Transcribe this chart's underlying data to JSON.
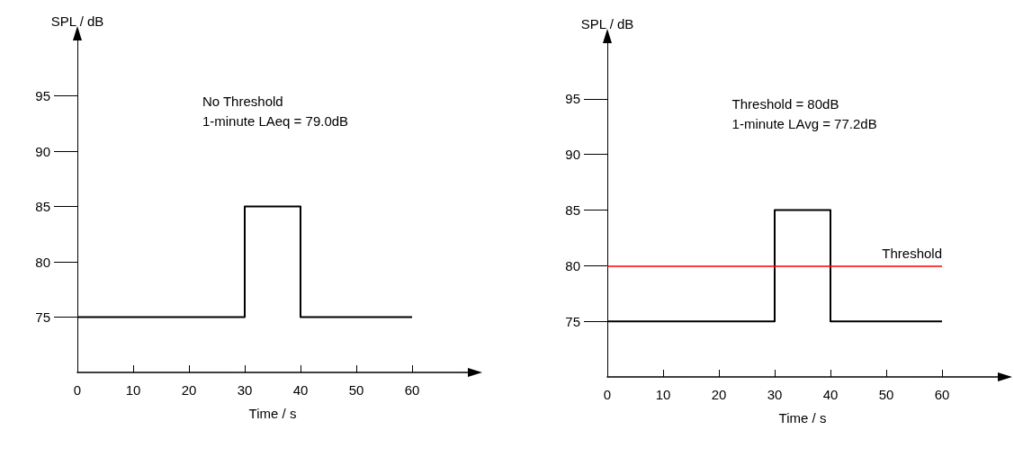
{
  "chart_data": [
    {
      "type": "step",
      "xlabel": "Time / s",
      "ylabel": "SPL / dB",
      "annotations": [
        "No Threshold",
        "1-minute LAeq = 79.0dB"
      ],
      "x": [
        0,
        30,
        40,
        60
      ],
      "series": [
        {
          "color": "#000000",
          "values": [
            75,
            85,
            75,
            75
          ]
        }
      ],
      "xlim": [
        0,
        70
      ],
      "xticks": [
        0,
        10,
        20,
        30,
        40,
        50,
        60
      ],
      "ylim": [
        70,
        100
      ],
      "yticks": [
        75,
        80,
        85,
        90,
        95
      ],
      "grid": false
    },
    {
      "type": "step",
      "xlabel": "Time / s",
      "ylabel": "SPL / dB",
      "annotations": [
        "Threshold = 80dB",
        "1-minute LAvg = 77.2dB"
      ],
      "x": [
        0,
        30,
        40,
        60
      ],
      "series": [
        {
          "color": "#000000",
          "values": [
            75,
            85,
            75,
            75
          ]
        }
      ],
      "xlim": [
        0,
        70
      ],
      "xticks": [
        0,
        10,
        20,
        30,
        40,
        50,
        60
      ],
      "ylim": [
        70,
        100
      ],
      "yticks": [
        75,
        80,
        85,
        90,
        95
      ],
      "grid": false,
      "ref_lines": [
        {
          "axis": "y",
          "value": 80,
          "label": "Threshold",
          "color": "#ff0000"
        }
      ]
    }
  ]
}
